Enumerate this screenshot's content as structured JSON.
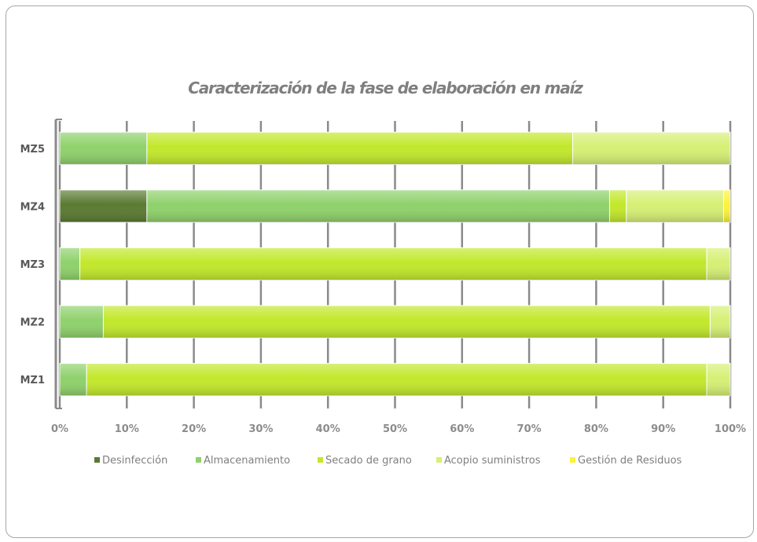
{
  "chart_data": {
    "type": "bar",
    "orientation": "horizontal",
    "stacked": "percent",
    "title": "Caracterización de la fase de elaboración en maíz",
    "categories": [
      "MZ1",
      "MZ2",
      "MZ3",
      "MZ4",
      "MZ5"
    ],
    "series": [
      {
        "name": "Desinfección",
        "color": "#5a7a32",
        "values": [
          0,
          0,
          0,
          13,
          0
        ]
      },
      {
        "name": "Almacenamiento",
        "color": "#8fd16b",
        "values": [
          4,
          6.5,
          3,
          69,
          13
        ]
      },
      {
        "name": "Secado de grano",
        "color": "#c2e82b",
        "values": [
          92.5,
          90.5,
          93.5,
          2.5,
          63.5
        ]
      },
      {
        "name": "Acopio suministros",
        "color": "#d6f075",
        "values": [
          3.5,
          3,
          3.5,
          14.5,
          23.5
        ]
      },
      {
        "name": "Gestión de Residuos",
        "color": "#fff23a",
        "values": [
          0,
          0,
          0,
          1,
          0
        ]
      }
    ],
    "xticks": [
      "0%",
      "10%",
      "20%",
      "30%",
      "40%",
      "50%",
      "60%",
      "70%",
      "80%",
      "90%",
      "100%"
    ],
    "xlim": [
      0,
      100
    ],
    "grid": true,
    "legend_position": "bottom"
  }
}
